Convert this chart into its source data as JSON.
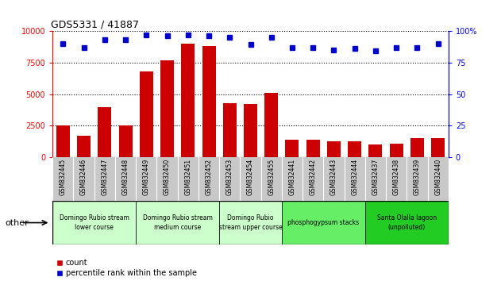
{
  "title": "GDS5331 / 41887",
  "samples": [
    "GSM832445",
    "GSM832446",
    "GSM832447",
    "GSM832448",
    "GSM832449",
    "GSM832450",
    "GSM832451",
    "GSM832452",
    "GSM832453",
    "GSM832454",
    "GSM832455",
    "GSM832441",
    "GSM832442",
    "GSM832443",
    "GSM832444",
    "GSM832437",
    "GSM832438",
    "GSM832439",
    "GSM832440"
  ],
  "counts": [
    2500,
    1700,
    4000,
    2500,
    6800,
    7700,
    9000,
    8800,
    4300,
    4200,
    5100,
    1400,
    1400,
    1250,
    1300,
    1000,
    1100,
    1500,
    1500
  ],
  "percentiles": [
    90,
    87,
    93,
    93,
    97,
    96,
    97,
    96,
    95,
    89,
    95,
    87,
    87,
    85,
    86,
    84,
    87,
    87,
    90
  ],
  "groups": [
    {
      "label": "Domingo Rubio stream\nlower course",
      "start": 0,
      "end": 4,
      "color": "#ccffcc"
    },
    {
      "label": "Domingo Rubio stream\nmedium course",
      "start": 4,
      "end": 8,
      "color": "#ccffcc"
    },
    {
      "label": "Domingo Rubio\nstream upper course",
      "start": 8,
      "end": 11,
      "color": "#ccffcc"
    },
    {
      "label": "phosphogypsum stacks",
      "start": 11,
      "end": 15,
      "color": "#66ee66"
    },
    {
      "label": "Santa Olalla lagoon\n(unpolluted)",
      "start": 15,
      "end": 19,
      "color": "#22cc22"
    }
  ],
  "bar_color": "#cc0000",
  "dot_color": "#0000cc",
  "ylim_left": [
    0,
    10000
  ],
  "ylim_right": [
    0,
    100
  ],
  "yticks_left": [
    0,
    2500,
    5000,
    7500,
    10000
  ],
  "ytick_labels_left": [
    "0",
    "2500",
    "5000",
    "7500",
    "10000"
  ],
  "yticks_right": [
    0,
    25,
    50,
    75,
    100
  ],
  "ytick_labels_right": [
    "0",
    "25",
    "50",
    "75",
    "100%"
  ],
  "legend_labels": [
    "count",
    "percentile rank within the sample"
  ],
  "other_label": "other",
  "bg_gray": "#c8c8c8",
  "group_border_color": "#000000"
}
